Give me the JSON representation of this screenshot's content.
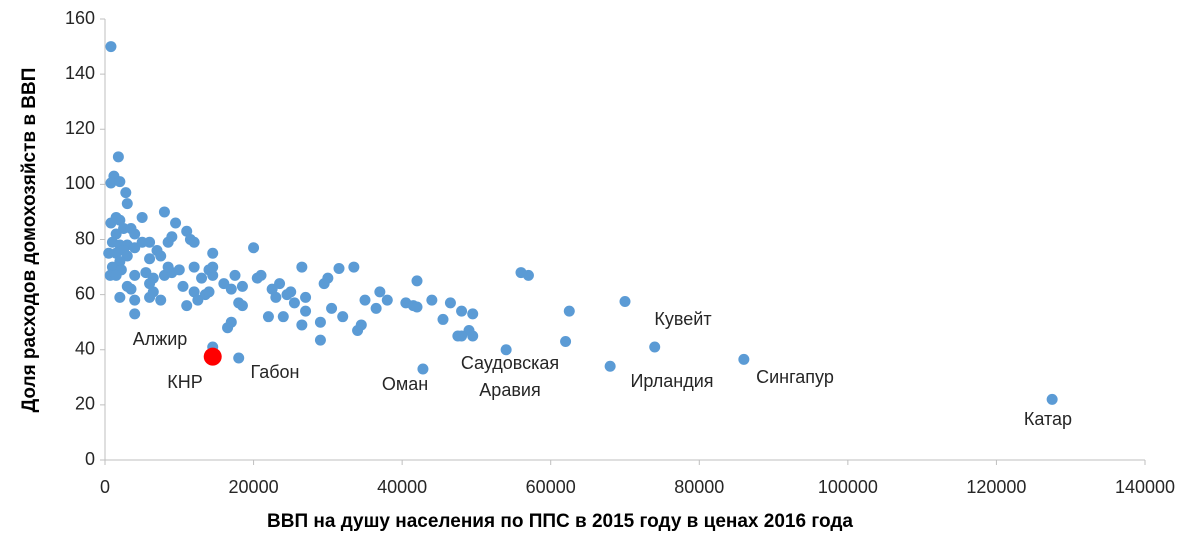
{
  "chart_data": {
    "type": "scatter",
    "xlabel": "ВВП на душу населения по ППС в 2015 году в ценах 2016 года",
    "ylabel": "Доля расходов домохозяйств в ВВП",
    "xlim": [
      0,
      140000
    ],
    "xticks": [
      0,
      20000,
      40000,
      60000,
      80000,
      100000,
      120000,
      140000
    ],
    "ylim": [
      0,
      160
    ],
    "yticks": [
      0,
      20,
      40,
      60,
      80,
      100,
      120,
      140,
      160
    ],
    "series": [
      {
        "color": "#5b9bd5",
        "x": [
          800,
          1800,
          1200,
          800,
          2000,
          2800,
          3000,
          800,
          1500,
          2000,
          5000,
          2500,
          3500,
          1500,
          4000,
          6000,
          1000,
          2000,
          3000,
          4000,
          5000,
          7000,
          2500,
          1500,
          500,
          3000,
          6000,
          7500,
          2000,
          1000,
          2200,
          700,
          1500,
          4000,
          5500,
          6500,
          6000,
          8000,
          9000,
          8500,
          10000,
          3000,
          2000,
          3500,
          4000,
          4000,
          6000,
          6500,
          7500,
          8000,
          9500,
          8500,
          9000,
          11000,
          11500,
          12000,
          10500,
          11000,
          12000,
          12000,
          13000,
          13500,
          12500,
          14000,
          14500,
          14500,
          14000,
          14500,
          14500,
          16500,
          17000,
          17500,
          18000,
          18500,
          18500,
          16000,
          17000,
          18000,
          20000,
          20500,
          21000,
          22000,
          22500,
          23000,
          23500,
          24000,
          25000,
          25500,
          24500,
          26500,
          27000,
          26500,
          27000,
          29000,
          29000,
          29500,
          30000,
          30500,
          31500,
          32000,
          33500,
          34000,
          34500,
          35000,
          36500,
          37000,
          38000,
          40500,
          41500,
          42000,
          42000,
          44000,
          45500,
          46500,
          47500,
          48000,
          49000,
          49500,
          49500,
          48000,
          42800,
          54000,
          56000,
          57000,
          62000,
          62500,
          68000,
          70000,
          74000,
          86000,
          127500
        ],
        "y": [
          150,
          110,
          103,
          100.5,
          101,
          97,
          93,
          86,
          88,
          87,
          88,
          84,
          84,
          82,
          82,
          79,
          79,
          78,
          78,
          77,
          79,
          76,
          76,
          75,
          75,
          74,
          73,
          74,
          72,
          70,
          69,
          67,
          67,
          67,
          68,
          66,
          64,
          67,
          68,
          70,
          69,
          63,
          59,
          62,
          58,
          53,
          59,
          61,
          58,
          90,
          86,
          79,
          81,
          83,
          80,
          79,
          63,
          56,
          61,
          70,
          66,
          60,
          58,
          69,
          75,
          67,
          61,
          70,
          41,
          48,
          50,
          67,
          57,
          56,
          63,
          64,
          62,
          37,
          77,
          66,
          67,
          52,
          62,
          59,
          64,
          52,
          61,
          57,
          60,
          70,
          54,
          49,
          59,
          43.5,
          50,
          64,
          66,
          55,
          69.5,
          52,
          70,
          47,
          49,
          58,
          55,
          61,
          58,
          57,
          56,
          65,
          55.5,
          58,
          51,
          57,
          45,
          54,
          47,
          53,
          45,
          45,
          33,
          40,
          68,
          67,
          43,
          54,
          34,
          57.5,
          41,
          36.5,
          22
        ]
      },
      {
        "color": "#ff0000",
        "x": [
          14500
        ],
        "y": [
          37.5
        ]
      }
    ],
    "annotations": [
      "Алжир",
      "КНР",
      "Габон",
      "Оман",
      "Саудовская",
      "Аравия",
      "Ирландия",
      "Кувейт",
      "Сингапур",
      "Катар"
    ]
  }
}
